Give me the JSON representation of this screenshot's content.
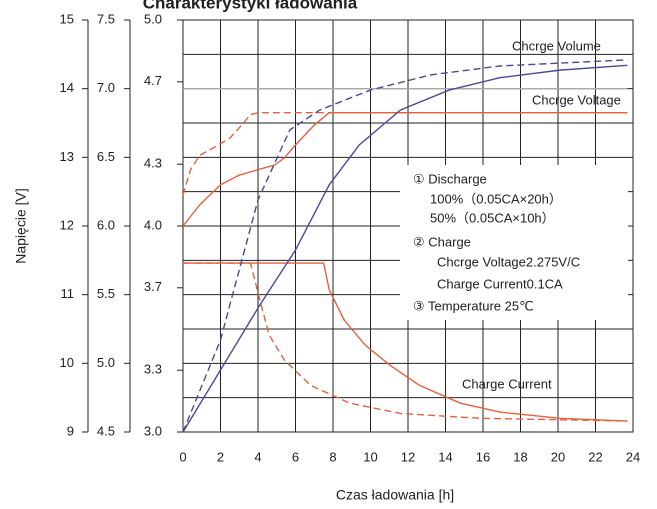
{
  "chart_data": {
    "type": "line",
    "title": "Charakterystyki ładowania",
    "y_label": "Napięcie [V]",
    "x_label": "Czas ładowania  [h]",
    "xlim": [
      0,
      24
    ],
    "xticks": [
      0,
      2,
      4,
      6,
      8,
      10,
      12,
      14,
      16,
      18,
      20,
      22,
      24
    ],
    "ylim": [
      9,
      15
    ],
    "yticks": [
      9,
      10,
      11,
      12,
      13,
      14,
      15
    ],
    "yminorticks": [
      9.5,
      10.5,
      11.5,
      12.5,
      13.5,
      14.5
    ],
    "y2lim": [
      4.5,
      7.5
    ],
    "y2ticks": [
      4.5,
      {
        "value": 5,
        "label": "5.0"
      },
      5.5,
      {
        "value": 6,
        "label": "6.0"
      },
      6.5,
      {
        "value": 7,
        "label": "7.0"
      },
      7.5
    ],
    "y3lim": [
      3,
      5
    ],
    "y3ticks": [
      {
        "value": 3,
        "label": "3.0"
      },
      3.3,
      3.7,
      {
        "value": 4,
        "label": "4.0"
      },
      4.3,
      4.7,
      {
        "value": 5,
        "label": "5.0"
      }
    ],
    "grid": true,
    "series": [
      {
        "color": "#a8a8a8",
        "dash": false,
        "x": [
          0,
          23.7
        ],
        "values": [
          14,
          14
        ]
      },
      {
        "color": "#e8603c",
        "dash": false,
        "x": [
          0,
          0.9,
          2.0,
          3.0,
          4.0,
          4.9,
          5.4,
          6.0,
          7.0,
          7.8,
          23.7
        ],
        "values": [
          12.0,
          12.31,
          12.6,
          12.74,
          12.82,
          12.89,
          12.99,
          13.18,
          13.47,
          13.65,
          13.65
        ]
      },
      {
        "color": "#e8603c",
        "dash": true,
        "x": [
          0,
          0.4,
          0.9,
          1.7,
          2.5,
          3.0,
          3.6,
          4.0,
          23.7
        ],
        "values": [
          12.45,
          12.82,
          13.03,
          13.15,
          13.28,
          13.43,
          13.62,
          13.65,
          13.65
        ]
      },
      {
        "color": "#e8603c",
        "dash": false,
        "x": [
          0,
          7.5,
          7.8,
          8.6,
          9.7,
          11.0,
          12.6,
          14.8,
          16.9,
          20.1,
          23.7
        ],
        "values": [
          11.46,
          11.46,
          11.07,
          10.63,
          10.27,
          9.98,
          9.68,
          9.42,
          9.29,
          9.2,
          9.16
        ]
      },
      {
        "color": "#e8603c",
        "dash": true,
        "x": [
          0,
          3.6,
          4.1,
          4.6,
          5.4,
          6.8,
          8.9,
          11.6,
          15.8,
          23.7
        ],
        "values": [
          11.46,
          11.46,
          10.92,
          10.41,
          10.05,
          9.68,
          9.42,
          9.27,
          9.2,
          9.16
        ]
      },
      {
        "color": "#4a4a9a",
        "dash": false,
        "x": [
          0,
          4.1,
          6.0,
          7.8,
          9.4,
          11.6,
          14.2,
          16.9,
          20.1,
          23.7
        ],
        "values": [
          9.0,
          10.85,
          11.65,
          12.6,
          13.18,
          13.69,
          13.98,
          14.16,
          14.27,
          14.34
        ]
      },
      {
        "color": "#4a4a9a",
        "dash": true,
        "x": [
          0,
          2.0,
          4.0,
          5.7,
          7.3,
          10.0,
          13.2,
          16.9,
          23.7
        ],
        "values": [
          9.0,
          10.34,
          12.38,
          13.4,
          13.69,
          13.98,
          14.2,
          14.33,
          14.42
        ]
      }
    ],
    "annotations": [
      "Chcrge Volume",
      "Chcrge Voltage",
      "Charge Current"
    ],
    "note_box": [
      "①  Discharge",
      "100%（0.05CA×20h）",
      "50%（0.05CA×10h）",
      "②  Charge",
      "Chcrge Voltage2.275V/C",
      "Charge Current0.1CA",
      "③  Temperature 25℃"
    ]
  }
}
